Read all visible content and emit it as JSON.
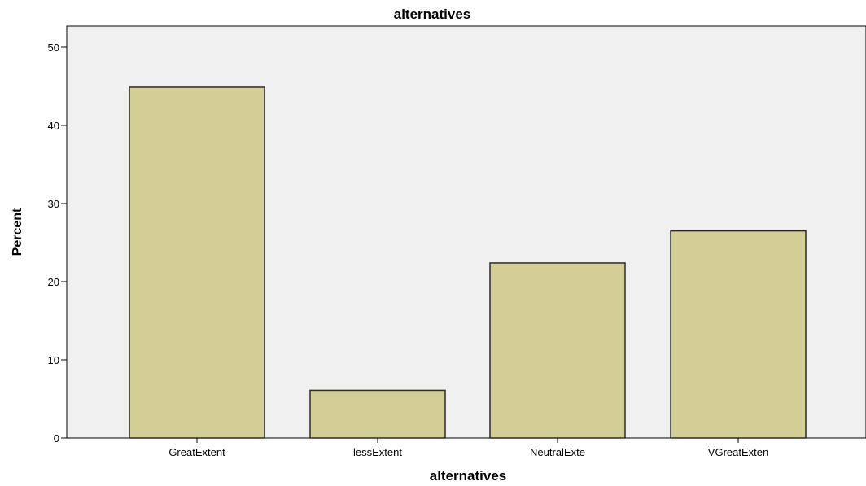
{
  "chart_data": {
    "type": "bar",
    "title": "alternatives",
    "xlabel": "alternatives",
    "ylabel": "Percent",
    "categories": [
      "GreatExtent",
      "lessExtent",
      "NeutralExte",
      "VGreatExten"
    ],
    "values": [
      44.9,
      6.1,
      22.4,
      26.5
    ],
    "ylim": [
      0,
      52
    ],
    "yticks": [
      0,
      10,
      20,
      30,
      40,
      50
    ],
    "grid": false,
    "legend": "none",
    "colors": {
      "bar_fill": "#d3cd96",
      "bar_stroke": "#2b2b2b",
      "plot_background": "#f0f0f0",
      "axis": "#000000"
    }
  }
}
